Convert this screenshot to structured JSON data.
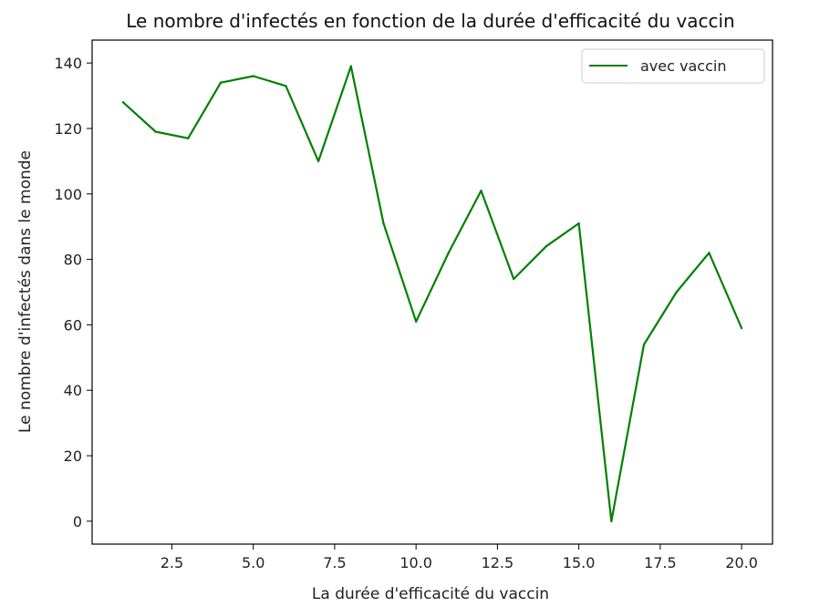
{
  "chart_data": {
    "type": "line",
    "title": "Le nombre d'infectés en fonction de la durée d'efficacité du vaccin",
    "xlabel": "La durée d'efficacité du vaccin",
    "ylabel": "Le nombre d'infectés dans le monde",
    "xlim": [
      0.05,
      20.95
    ],
    "ylim": [
      -7,
      147
    ],
    "x_ticks": [
      2.5,
      5.0,
      7.5,
      10.0,
      12.5,
      15.0,
      17.5,
      20.0
    ],
    "x_tick_labels": [
      "2.5",
      "5.0",
      "7.5",
      "10.0",
      "12.5",
      "15.0",
      "17.5",
      "20.0"
    ],
    "y_ticks": [
      0,
      20,
      40,
      60,
      80,
      100,
      120,
      140
    ],
    "y_tick_labels": [
      "0",
      "20",
      "40",
      "60",
      "80",
      "100",
      "120",
      "140"
    ],
    "grid": false,
    "legend_position": "top-right",
    "series": [
      {
        "name": "avec vaccin",
        "color": "#008000",
        "x": [
          1,
          2,
          3,
          4,
          5,
          6,
          7,
          8,
          9,
          10,
          11,
          12,
          13,
          14,
          15,
          16,
          17,
          18,
          19,
          20
        ],
        "y": [
          128,
          119,
          117,
          134,
          136,
          133,
          110,
          139,
          91,
          61,
          82,
          101,
          74,
          84,
          91,
          0,
          54,
          70,
          82,
          59
        ]
      }
    ]
  }
}
